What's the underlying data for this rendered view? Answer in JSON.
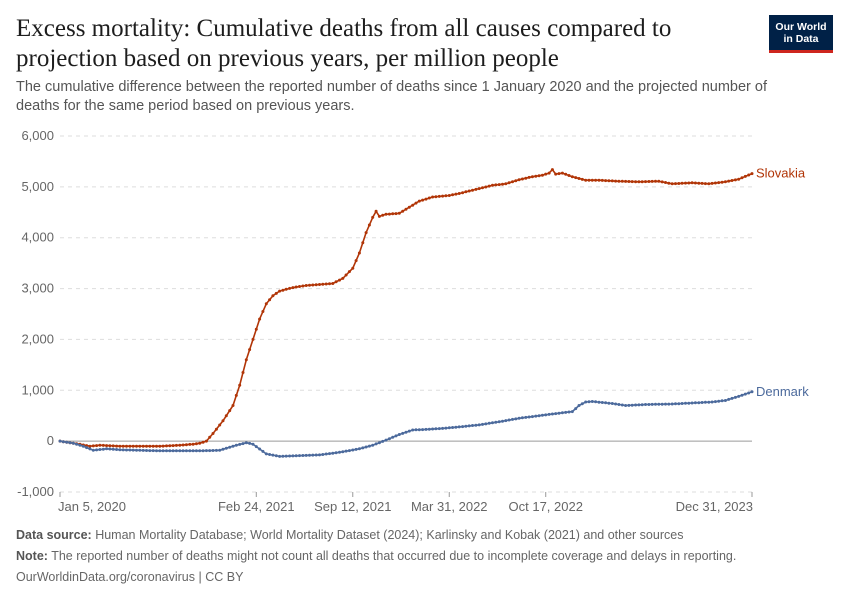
{
  "header": {
    "title": "Excess mortality: Cumulative deaths from all causes compared to projection based on previous years, per million people",
    "subtitle": "The cumulative difference between the reported number of deaths since 1 January 2020 and the projected number of deaths for the same period based on previous years.",
    "logo_line1": "Our World",
    "logo_line2": "in Data"
  },
  "chart_data": {
    "type": "line",
    "title": "Excess mortality: Cumulative deaths from all causes compared to projection based on previous years, per million people",
    "xlabel": "",
    "ylabel": "",
    "ylim": [
      -1000,
      6000
    ],
    "yticks": [
      -1000,
      0,
      1000,
      2000,
      3000,
      4000,
      5000,
      6000
    ],
    "ytick_labels": [
      "-1,000",
      "0",
      "1,000",
      "2,000",
      "3,000",
      "4,000",
      "5,000",
      "6,000"
    ],
    "xticks": [
      "Jan 5, 2020",
      "Feb 24, 2021",
      "Sep 12, 2021",
      "Mar 31, 2022",
      "Oct 17, 2022",
      "Dec 31, 2023"
    ],
    "xtick_weeks": [
      0,
      59,
      88,
      117,
      146,
      208
    ],
    "x_range_weeks": [
      0,
      208
    ],
    "series": [
      {
        "name": "Slovakia",
        "color": "#b13507",
        "points": [
          [
            0,
            0
          ],
          [
            5,
            -50
          ],
          [
            9,
            -100
          ],
          [
            12,
            -80
          ],
          [
            18,
            -100
          ],
          [
            25,
            -100
          ],
          [
            30,
            -100
          ],
          [
            36,
            -80
          ],
          [
            40,
            -60
          ],
          [
            42,
            -40
          ],
          [
            44,
            0
          ],
          [
            46,
            150
          ],
          [
            49,
            400
          ],
          [
            52,
            700
          ],
          [
            54,
            1100
          ],
          [
            56,
            1600
          ],
          [
            58,
            2000
          ],
          [
            60,
            2400
          ],
          [
            62,
            2700
          ],
          [
            64,
            2860
          ],
          [
            66,
            2950
          ],
          [
            70,
            3020
          ],
          [
            74,
            3060
          ],
          [
            78,
            3080
          ],
          [
            82,
            3100
          ],
          [
            85,
            3200
          ],
          [
            88,
            3400
          ],
          [
            90,
            3700
          ],
          [
            92,
            4100
          ],
          [
            94,
            4400
          ],
          [
            95,
            4520
          ],
          [
            96,
            4420
          ],
          [
            98,
            4460
          ],
          [
            102,
            4480
          ],
          [
            105,
            4600
          ],
          [
            108,
            4720
          ],
          [
            112,
            4800
          ],
          [
            117,
            4830
          ],
          [
            120,
            4870
          ],
          [
            125,
            4950
          ],
          [
            130,
            5030
          ],
          [
            134,
            5060
          ],
          [
            138,
            5140
          ],
          [
            142,
            5200
          ],
          [
            145,
            5230
          ],
          [
            147,
            5270
          ],
          [
            148,
            5340
          ],
          [
            149,
            5250
          ],
          [
            151,
            5270
          ],
          [
            154,
            5200
          ],
          [
            158,
            5130
          ],
          [
            162,
            5130
          ],
          [
            168,
            5110
          ],
          [
            174,
            5100
          ],
          [
            180,
            5110
          ],
          [
            184,
            5060
          ],
          [
            190,
            5080
          ],
          [
            195,
            5060
          ],
          [
            200,
            5100
          ],
          [
            204,
            5150
          ],
          [
            208,
            5260
          ]
        ]
      },
      {
        "name": "Denmark",
        "color": "#4c6a9c",
        "points": [
          [
            0,
            0
          ],
          [
            4,
            -40
          ],
          [
            7,
            -100
          ],
          [
            10,
            -180
          ],
          [
            14,
            -150
          ],
          [
            18,
            -170
          ],
          [
            24,
            -180
          ],
          [
            30,
            -190
          ],
          [
            36,
            -190
          ],
          [
            42,
            -190
          ],
          [
            48,
            -180
          ],
          [
            52,
            -100
          ],
          [
            56,
            -30
          ],
          [
            58,
            -60
          ],
          [
            62,
            -250
          ],
          [
            66,
            -300
          ],
          [
            70,
            -290
          ],
          [
            78,
            -270
          ],
          [
            84,
            -220
          ],
          [
            90,
            -150
          ],
          [
            94,
            -80
          ],
          [
            98,
            20
          ],
          [
            102,
            130
          ],
          [
            106,
            220
          ],
          [
            110,
            230
          ],
          [
            115,
            250
          ],
          [
            120,
            280
          ],
          [
            126,
            320
          ],
          [
            132,
            380
          ],
          [
            138,
            450
          ],
          [
            144,
            500
          ],
          [
            150,
            550
          ],
          [
            154,
            580
          ],
          [
            156,
            700
          ],
          [
            158,
            770
          ],
          [
            160,
            780
          ],
          [
            166,
            740
          ],
          [
            170,
            700
          ],
          [
            176,
            720
          ],
          [
            184,
            730
          ],
          [
            190,
            750
          ],
          [
            196,
            770
          ],
          [
            200,
            800
          ],
          [
            204,
            880
          ],
          [
            208,
            970
          ]
        ]
      }
    ]
  },
  "footer": {
    "source_label": "Data source:",
    "source_text": " Human Mortality Database; World Mortality Dataset (2024); Karlinsky and Kobak (2021) and other sources",
    "note_label": "Note:",
    "note_text": " The reported number of deaths might not count all deaths that occurred due to incomplete coverage and delays in reporting.",
    "credit": "OurWorldinData.org/coronavirus | CC BY"
  }
}
